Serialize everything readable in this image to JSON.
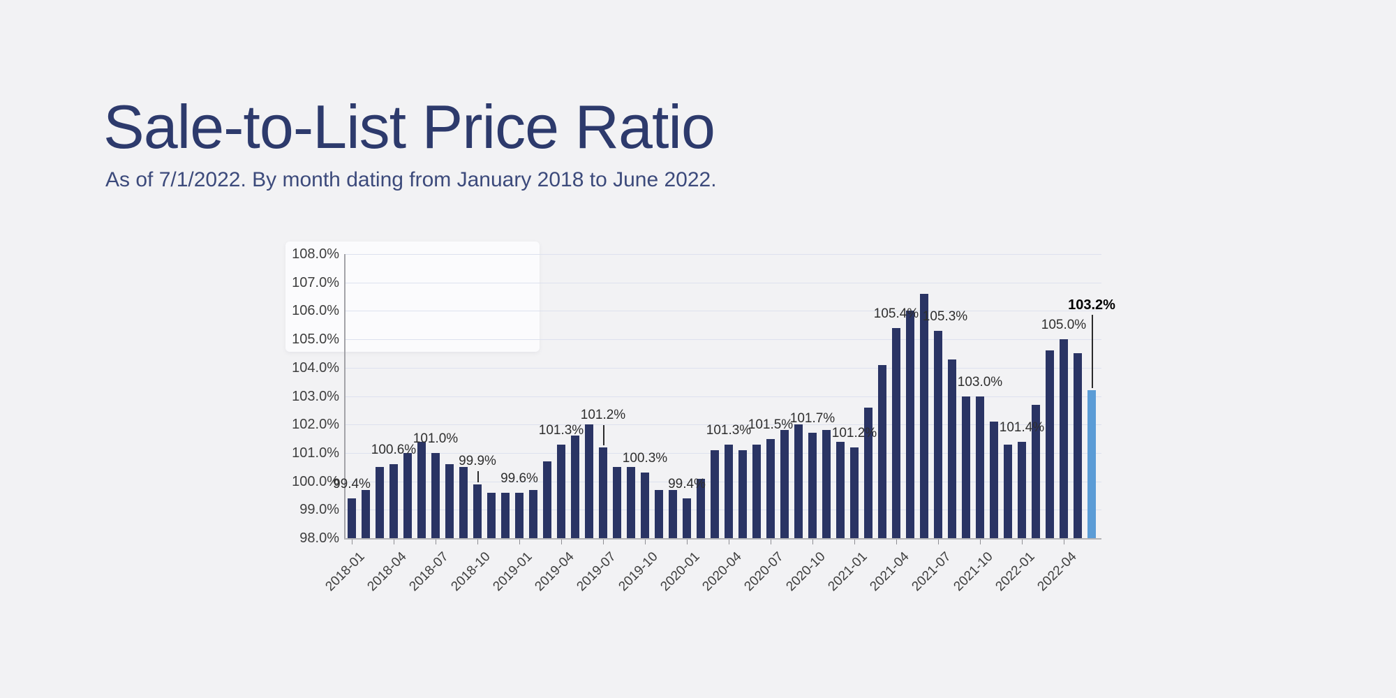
{
  "header": {
    "title": "Sale-to-List Price Ratio",
    "subtitle": "As of 7/1/2022. By month dating from January 2018 to June 2022."
  },
  "colors": {
    "page_background": "#f2f2f4",
    "panel": "#fbfbfd",
    "bar": "#2a3464",
    "bar_highlight": "#5b9cd6",
    "title_text": "#2d3a6c",
    "subtitle_text": "#3c4a7b",
    "gridline": "#dde1ee",
    "axis_line": "#a3a3a8",
    "tick_text": "#3e3e3e",
    "annotation_text": "#2e2e2e"
  },
  "chart_data": {
    "type": "bar",
    "title": "Sale-to-List Price Ratio",
    "xlabel": "",
    "ylabel": "",
    "unit": "%",
    "grid": "horizontal",
    "ylim": [
      98,
      108
    ],
    "ytick_labels": [
      "98.0%",
      "99.0%",
      "100.0%",
      "101.0%",
      "102.0%",
      "103.0%",
      "104.0%",
      "105.0%",
      "106.0%",
      "107.0%",
      "108.0%"
    ],
    "xtick_every": 3,
    "xtick_labels": [
      "2018-01",
      "2018-04",
      "2018-07",
      "2018-10",
      "2019-01",
      "2019-04",
      "2019-07",
      "2019-10",
      "2020-01",
      "2020-04",
      "2020-07",
      "2020-10",
      "2021-01",
      "2021-04",
      "2021-07",
      "2021-10",
      "2022-01",
      "2022-04"
    ],
    "x": [
      "2018-01",
      "2018-02",
      "2018-03",
      "2018-04",
      "2018-05",
      "2018-06",
      "2018-07",
      "2018-08",
      "2018-09",
      "2018-10",
      "2018-11",
      "2018-12",
      "2019-01",
      "2019-02",
      "2019-03",
      "2019-04",
      "2019-05",
      "2019-06",
      "2019-07",
      "2019-08",
      "2019-09",
      "2019-10",
      "2019-11",
      "2019-12",
      "2020-01",
      "2020-02",
      "2020-03",
      "2020-04",
      "2020-05",
      "2020-06",
      "2020-07",
      "2020-08",
      "2020-09",
      "2020-10",
      "2020-11",
      "2020-12",
      "2021-01",
      "2021-02",
      "2021-03",
      "2021-04",
      "2021-05",
      "2021-06",
      "2021-07",
      "2021-08",
      "2021-09",
      "2021-10",
      "2021-11",
      "2021-12",
      "2022-01",
      "2022-02",
      "2022-03",
      "2022-04",
      "2022-05",
      "2022-06"
    ],
    "values": [
      99.4,
      99.7,
      100.5,
      100.6,
      101.0,
      101.4,
      101.0,
      100.6,
      100.5,
      99.9,
      99.6,
      99.6,
      99.6,
      99.7,
      100.7,
      101.3,
      101.6,
      102.0,
      101.2,
      100.5,
      100.5,
      100.3,
      99.7,
      99.7,
      99.4,
      100.1,
      101.1,
      101.3,
      101.1,
      101.3,
      101.5,
      101.8,
      102.0,
      101.7,
      101.8,
      101.4,
      101.2,
      102.6,
      104.1,
      105.4,
      106.0,
      106.6,
      105.3,
      104.3,
      103.0,
      103.0,
      102.1,
      101.3,
      101.4,
      102.7,
      104.6,
      105.0,
      104.5,
      103.2
    ],
    "highlight_index": 53,
    "highlight_label": "103.2%",
    "annotations": [
      {
        "i": 0,
        "text": "99.4%"
      },
      {
        "i": 3,
        "text": "100.6%"
      },
      {
        "i": 6,
        "text": "101.0%"
      },
      {
        "i": 9,
        "text": "99.9%",
        "leader": 22
      },
      {
        "i": 12,
        "text": "99.6%"
      },
      {
        "i": 15,
        "text": "101.3%"
      },
      {
        "i": 18,
        "text": "101.2%",
        "leader": 35
      },
      {
        "i": 21,
        "text": "100.3%"
      },
      {
        "i": 24,
        "text": "99.4%"
      },
      {
        "i": 27,
        "text": "101.3%"
      },
      {
        "i": 30,
        "text": "101.5%"
      },
      {
        "i": 33,
        "text": "101.7%"
      },
      {
        "i": 36,
        "text": "101.2%"
      },
      {
        "i": 39,
        "text": "105.4%"
      },
      {
        "i": 42,
        "text": "105.3%",
        "dx": 10
      },
      {
        "i": 45,
        "text": "103.0%"
      },
      {
        "i": 48,
        "text": "101.4%"
      },
      {
        "i": 51,
        "text": "105.0%"
      },
      {
        "i": 53,
        "text": "103.2%",
        "leader": 111,
        "bold": true
      }
    ]
  }
}
